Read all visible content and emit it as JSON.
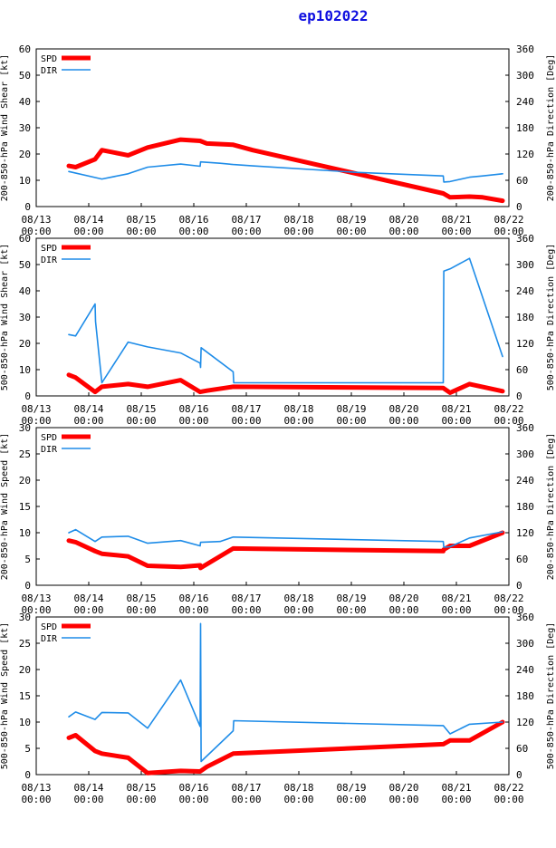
{
  "title": "ep102022",
  "colors": {
    "spd": "#ff0000",
    "dir": "#1e8ce8",
    "title": "#1010e0"
  },
  "x_tick_labels": [
    [
      "08/13",
      "00:00"
    ],
    [
      "08/14",
      "00:00"
    ],
    [
      "08/15",
      "00:00"
    ],
    [
      "08/16",
      "00:00"
    ],
    [
      "08/17",
      "00:00"
    ],
    [
      "08/18",
      "00:00"
    ],
    [
      "08/19",
      "00:00"
    ],
    [
      "08/20",
      "00:00"
    ],
    [
      "08/21",
      "00:00"
    ],
    [
      "08/22",
      "00:00"
    ]
  ],
  "chart_data": [
    {
      "type": "line",
      "ylabel": "200-850-hPa Wind Shear [kt]",
      "y2label": "200-850-hPa Direction [Deg]",
      "ylim": [
        0,
        60
      ],
      "yticks": [
        0,
        10,
        20,
        30,
        40,
        50,
        60
      ],
      "y2lim": [
        0,
        360
      ],
      "y2ticks": [
        0,
        60,
        120,
        180,
        240,
        300,
        360
      ],
      "xlim": [
        0,
        9
      ],
      "legend": [
        "SPD",
        "DIR"
      ],
      "series": [
        {
          "name": "SPD",
          "axis": "left",
          "x": [
            0.62,
            0.75,
            1.12,
            1.25,
            1.75,
            2.12,
            2.75,
            3.12,
            3.25,
            3.75,
            4.12,
            7.75,
            7.88,
            8.25,
            8.5,
            8.88
          ],
          "y": [
            15.5,
            15.0,
            18.0,
            21.5,
            19.5,
            22.5,
            25.5,
            25.0,
            24.0,
            23.5,
            21.5,
            5.0,
            3.5,
            3.8,
            3.5,
            2.2
          ]
        },
        {
          "name": "DIR",
          "axis": "right",
          "x": [
            0.62,
            1.25,
            1.75,
            2.12,
            2.75,
            3.12,
            3.13,
            3.5,
            3.75,
            4.12,
            6.12,
            7.75,
            7.76,
            7.88,
            8.25,
            8.5,
            8.88
          ],
          "y": [
            80,
            63,
            75,
            90,
            97,
            92,
            102,
            99,
            96,
            93,
            78,
            70,
            56,
            57,
            67,
            70,
            75
          ]
        }
      ]
    },
    {
      "type": "line",
      "ylabel": "500-850-hPa Wind Shear [kt]",
      "y2label": "500-850-hPa Direction [Deg]",
      "ylim": [
        0,
        60
      ],
      "yticks": [
        0,
        10,
        20,
        30,
        40,
        50,
        60
      ],
      "y2lim": [
        0,
        360
      ],
      "y2ticks": [
        0,
        60,
        120,
        180,
        240,
        300,
        360
      ],
      "xlim": [
        0,
        9
      ],
      "legend": [
        "SPD",
        "DIR"
      ],
      "series": [
        {
          "name": "SPD",
          "axis": "left",
          "x": [
            0.62,
            0.75,
            1.12,
            1.25,
            1.75,
            2.12,
            2.75,
            3.12,
            3.25,
            3.75,
            7.75,
            7.88,
            8.25,
            8.88
          ],
          "y": [
            8.0,
            7.0,
            1.5,
            3.5,
            4.5,
            3.5,
            6.0,
            1.5,
            2.0,
            3.5,
            3.0,
            1.2,
            4.5,
            1.8
          ]
        },
        {
          "name": "DIR",
          "axis": "right",
          "x": [
            0.62,
            0.75,
            1.12,
            1.13,
            1.25,
            1.75,
            2.12,
            2.75,
            3.12,
            3.13,
            3.14,
            3.75,
            3.76,
            7.75,
            7.76,
            7.88,
            8.25,
            8.88
          ],
          "y": [
            140,
            137,
            210,
            170,
            30,
            123,
            112,
            98,
            75,
            65,
            110,
            55,
            30,
            30,
            285,
            290,
            314,
            90
          ]
        }
      ]
    },
    {
      "type": "line",
      "ylabel": "200-850-hPa Wind Speed [kt]",
      "y2label": "200-850-hPa Direction [Deg]",
      "ylim": [
        0,
        30
      ],
      "yticks": [
        0,
        5,
        10,
        15,
        20,
        25,
        30
      ],
      "y2lim": [
        0,
        360
      ],
      "y2ticks": [
        0,
        60,
        120,
        180,
        240,
        300,
        360
      ],
      "xlim": [
        0,
        9
      ],
      "legend": [
        "SPD",
        "DIR"
      ],
      "series": [
        {
          "name": "SPD",
          "axis": "left",
          "x": [
            0.62,
            0.75,
            1.12,
            1.25,
            1.75,
            2.12,
            2.75,
            3.12,
            3.13,
            3.75,
            7.75,
            7.76,
            7.88,
            8.25,
            8.88
          ],
          "y": [
            8.5,
            8.2,
            6.5,
            6.0,
            5.5,
            3.7,
            3.5,
            3.8,
            3.3,
            7.0,
            6.5,
            6.8,
            7.5,
            7.5,
            10.0
          ]
        },
        {
          "name": "DIR",
          "axis": "right",
          "x": [
            0.62,
            0.75,
            1.12,
            1.25,
            1.75,
            2.12,
            2.75,
            3.12,
            3.13,
            3.5,
            3.75,
            7.75,
            7.76,
            7.88,
            8.25,
            8.88
          ],
          "y": [
            120,
            127,
            100,
            110,
            112,
            96,
            102,
            90,
            98,
            100,
            110,
            100,
            87,
            88,
            108,
            122
          ]
        }
      ]
    },
    {
      "type": "line",
      "ylabel": "500-850-hPa Wind Speed [kt]",
      "y2label": "500-850-hPa Direction [Deg]",
      "ylim": [
        0,
        30
      ],
      "yticks": [
        0,
        5,
        10,
        15,
        20,
        25,
        30
      ],
      "y2lim": [
        0,
        360
      ],
      "y2ticks": [
        0,
        60,
        120,
        180,
        240,
        300,
        360
      ],
      "xlim": [
        0,
        9
      ],
      "legend": [
        "SPD",
        "DIR"
      ],
      "series": [
        {
          "name": "SPD",
          "axis": "left",
          "x": [
            0.62,
            0.75,
            1.12,
            1.25,
            1.75,
            2.12,
            2.75,
            3.12,
            3.25,
            3.75,
            7.75,
            7.88,
            8.25,
            8.88
          ],
          "y": [
            7.0,
            7.5,
            4.5,
            4.0,
            3.2,
            0.3,
            0.7,
            0.6,
            1.5,
            4.0,
            5.8,
            6.5,
            6.5,
            10.0
          ]
        },
        {
          "name": "DIR",
          "axis": "right",
          "x": [
            0.62,
            0.75,
            1.12,
            1.25,
            1.75,
            2.12,
            2.75,
            3.12,
            3.13,
            3.14,
            3.75,
            3.76,
            7.75,
            7.88,
            8.25,
            8.88
          ],
          "y": [
            132,
            143,
            126,
            142,
            141,
            106,
            216,
            110,
            345,
            30,
            100,
            123,
            112,
            93,
            115,
            120
          ]
        }
      ]
    }
  ]
}
